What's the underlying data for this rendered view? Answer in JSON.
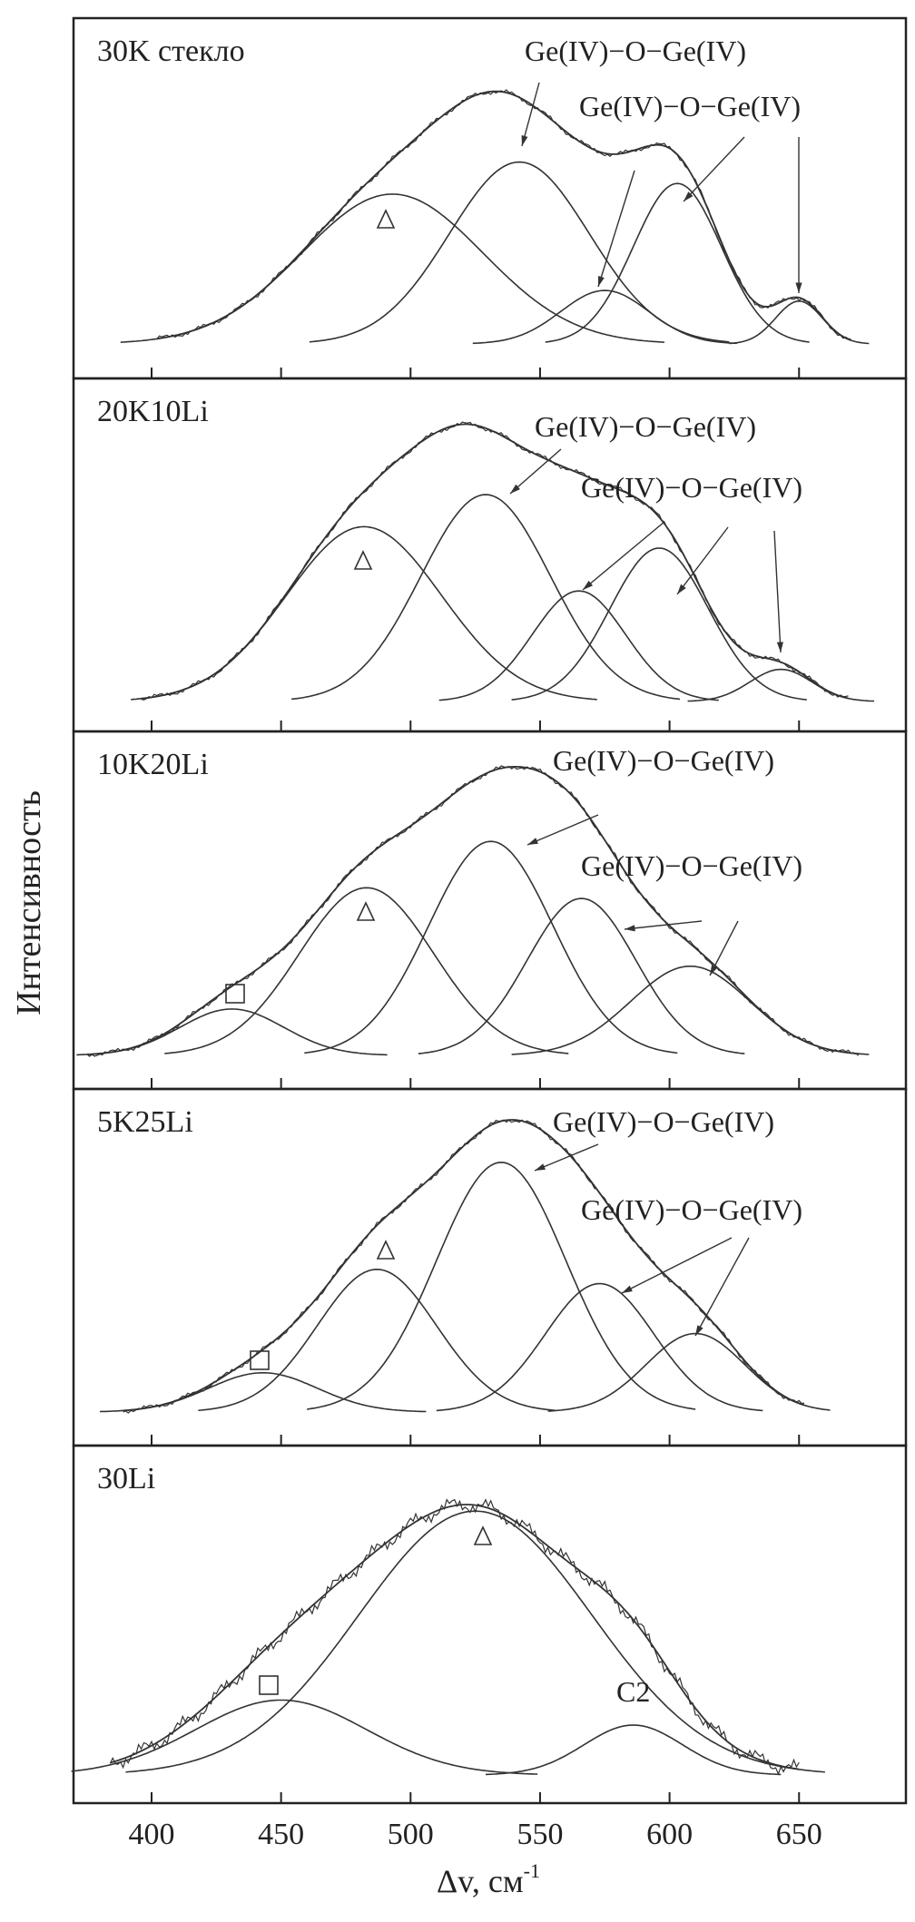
{
  "chart_data": {
    "type": "line",
    "title": "",
    "xlabel": "Δv, см",
    "xlabel_sup": "-1",
    "ylabel": "Интенсивность",
    "xlim": [
      370,
      690
    ],
    "xticks": [
      400,
      450,
      500,
      550,
      600,
      650
    ],
    "grid": false,
    "colors": {
      "line": "#333333",
      "frame": "#222222"
    },
    "panels": [
      {
        "name": "30K стекло",
        "range": [
          402,
          670
        ],
        "components": [
          {
            "center": 493,
            "amplitude": 0.42,
            "sigma": 35,
            "marker": "triangle"
          },
          {
            "center": 542,
            "amplitude": 0.51,
            "sigma": 27
          },
          {
            "center": 575,
            "amplitude": 0.15,
            "sigma": 17
          },
          {
            "center": 603,
            "amplitude": 0.45,
            "sigma": 17
          },
          {
            "center": 650,
            "amplitude": 0.12,
            "sigma": 9
          }
        ],
        "annotations": [
          "Ge(IV)−O−Ge(IV)",
          "Ge(IV)−O−Ge(IV)"
        ]
      },
      {
        "name": "20K10Li",
        "range": [
          396,
          669
        ],
        "components": [
          {
            "center": 482,
            "amplitude": 0.49,
            "sigma": 30,
            "marker": "triangle"
          },
          {
            "center": 529,
            "amplitude": 0.58,
            "sigma": 25
          },
          {
            "center": 565,
            "amplitude": 0.31,
            "sigma": 18
          },
          {
            "center": 596,
            "amplitude": 0.43,
            "sigma": 19
          },
          {
            "center": 643,
            "amplitude": 0.09,
            "sigma": 12
          }
        ],
        "annotations": [
          "Ge(IV)−O−Ge(IV)",
          "Ge(IV)−O−Ge(IV)"
        ]
      },
      {
        "name": "10K20Li",
        "range": [
          375,
          673
        ],
        "components": [
          {
            "center": 431,
            "amplitude": 0.13,
            "sigma": 20,
            "marker": "square"
          },
          {
            "center": 483,
            "amplitude": 0.47,
            "sigma": 26,
            "marker": "triangle"
          },
          {
            "center": 531,
            "amplitude": 0.6,
            "sigma": 24
          },
          {
            "center": 566,
            "amplitude": 0.44,
            "sigma": 21
          },
          {
            "center": 608,
            "amplitude": 0.25,
            "sigma": 23
          }
        ],
        "annotations": [
          "Ge(IV)−O−Ge(IV)",
          "Ge(IV)−O−Ge(IV)"
        ]
      },
      {
        "name": "5K25Li",
        "range": [
          389,
          652
        ],
        "components": [
          {
            "center": 443,
            "amplitude": 0.11,
            "sigma": 21,
            "marker": "square"
          },
          {
            "center": 487,
            "amplitude": 0.4,
            "sigma": 23,
            "marker": "triangle"
          },
          {
            "center": 535,
            "amplitude": 0.7,
            "sigma": 25
          },
          {
            "center": 573,
            "amplitude": 0.36,
            "sigma": 21
          },
          {
            "center": 610,
            "amplitude": 0.22,
            "sigma": 19
          }
        ],
        "annotations": [
          "Ge(IV)−O−Ge(IV)",
          "Ge(IV)−O−Ge(IV)"
        ]
      },
      {
        "name": "30Li",
        "range": [
          384,
          650
        ],
        "components": [
          {
            "center": 450,
            "amplitude": 0.21,
            "sigma": 33,
            "marker": "square"
          },
          {
            "center": 525,
            "amplitude": 0.74,
            "sigma": 45,
            "marker": "triangle"
          },
          {
            "center": 586,
            "amplitude": 0.14,
            "sigma": 19
          }
        ],
        "annotations": [
          "C2"
        ]
      }
    ]
  }
}
